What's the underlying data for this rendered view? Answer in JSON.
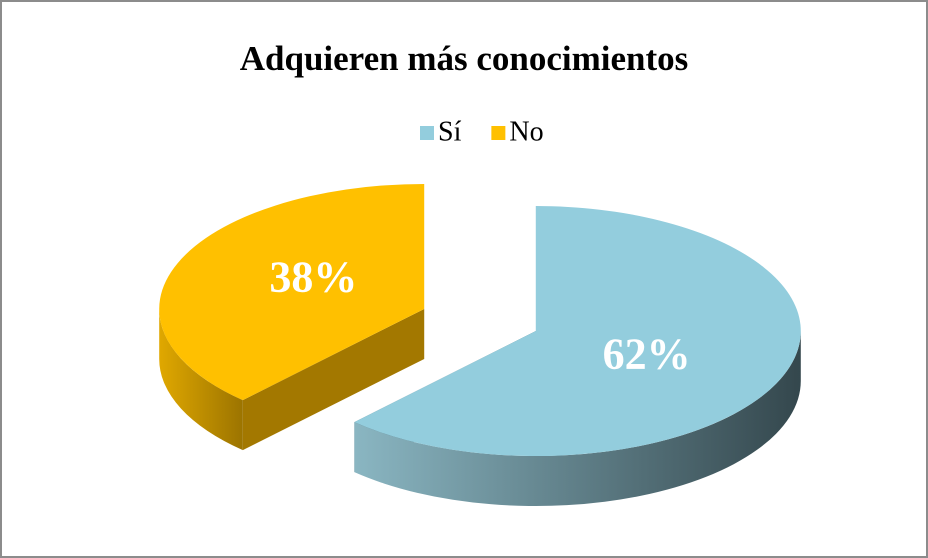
{
  "chart_data": {
    "type": "pie3d",
    "title": "Adquieren más conocimientos",
    "categories": [
      "Sí",
      "No"
    ],
    "values": [
      62,
      38
    ],
    "value_labels": [
      "62%",
      "38%"
    ],
    "colors": [
      "#93cddd",
      "#ffc000"
    ],
    "legend": "top"
  }
}
